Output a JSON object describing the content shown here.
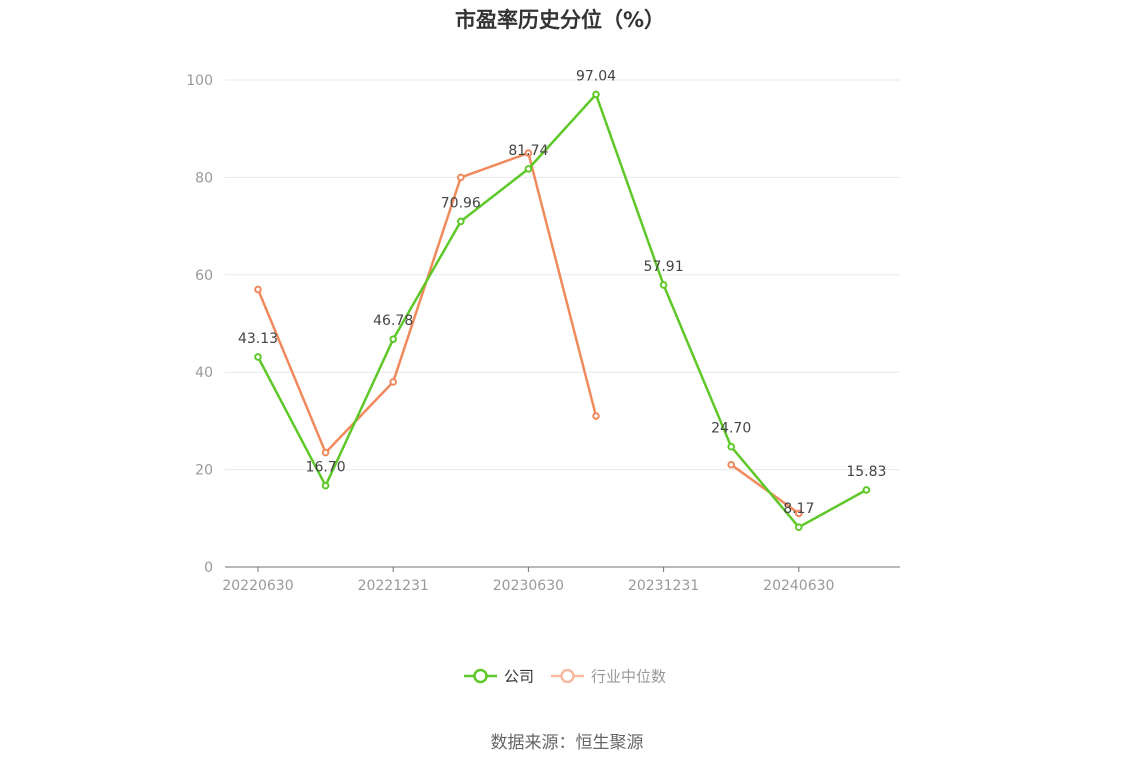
{
  "chart_data": {
    "type": "line",
    "title": "市盈率历史分位（%）",
    "xlabel": "",
    "ylabel": "",
    "ylim": [
      0,
      100
    ],
    "yticks": [
      0,
      20,
      40,
      60,
      80,
      100
    ],
    "categories": [
      "20220630",
      "20220930",
      "20221231",
      "20230331",
      "20230630",
      "20230930",
      "20231231",
      "20240331",
      "20240630",
      "20240930"
    ],
    "xtick_labels": [
      "20220630",
      "",
      "20221231",
      "",
      "20230630",
      "",
      "20231231",
      "",
      "20240630",
      ""
    ],
    "grid": true,
    "legend_position": "bottom-center",
    "series": [
      {
        "name": "公司",
        "color": "#5ec829",
        "values": [
          43.13,
          16.7,
          46.78,
          70.96,
          81.74,
          97.04,
          57.91,
          24.7,
          8.17,
          15.83
        ],
        "labels": [
          "43.13",
          "16.70",
          "46.78",
          "70.96",
          "81.74",
          "97.04",
          "57.91",
          "24.70",
          "8.17",
          "15.83"
        ]
      },
      {
        "name": "行业中位数",
        "color": "#f08a5d",
        "legend_color": "#f7b9a1",
        "values": [
          57,
          23.5,
          38,
          80,
          85,
          31,
          null,
          21,
          11,
          null
        ],
        "labels": []
      }
    ]
  },
  "footer": {
    "source": "数据来源：恒生聚源"
  }
}
